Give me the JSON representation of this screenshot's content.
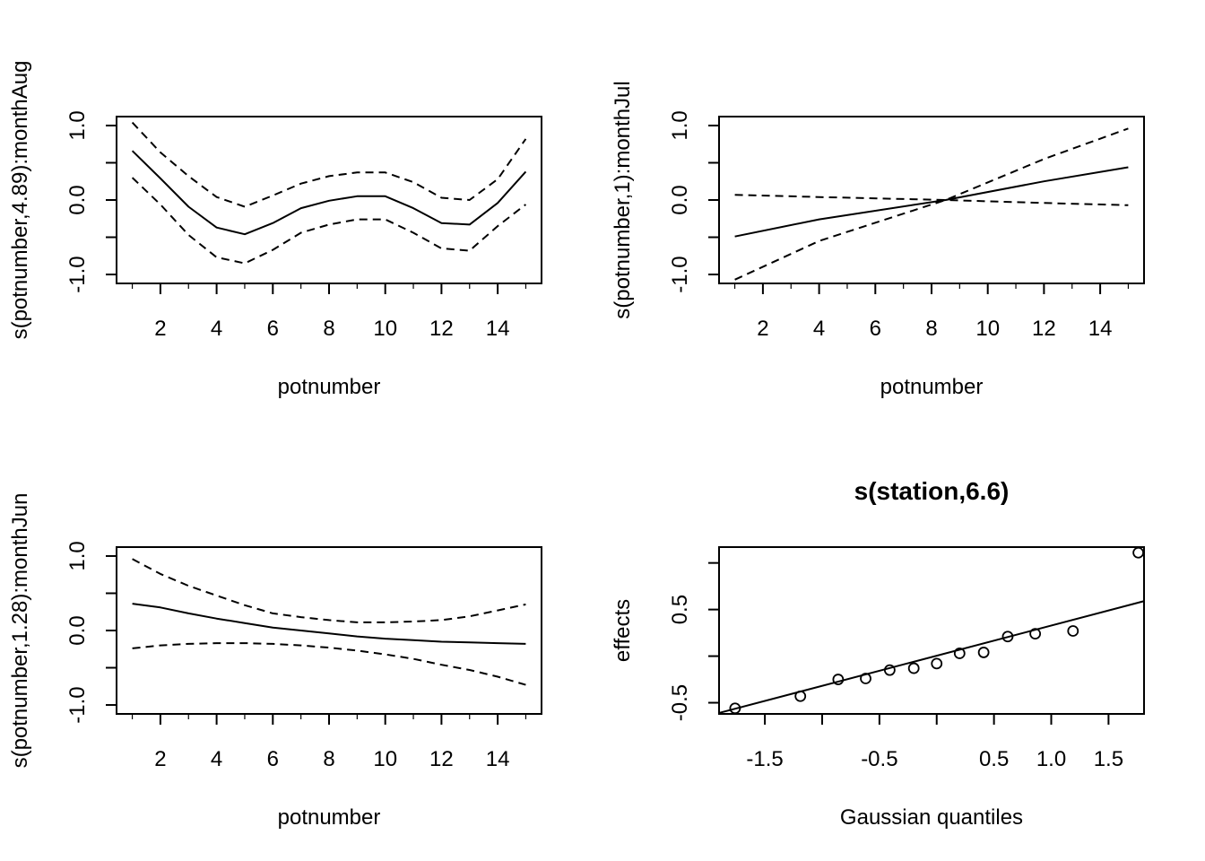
{
  "chart_data": [
    {
      "type": "line",
      "title": "",
      "xlabel": "potnumber",
      "ylabel": "s(potnumber,4.89):monthAug",
      "xlim": [
        0.44,
        15.56
      ],
      "ylim": [
        -1.12,
        1.12
      ],
      "xticks": [
        2,
        4,
        6,
        8,
        10,
        12,
        14
      ],
      "xticks_minor": [
        1,
        3,
        5,
        7,
        9,
        11,
        13,
        15
      ],
      "yticks": [
        -1.0,
        -0.5,
        0.0,
        0.5,
        1.0
      ],
      "yticklabels": [
        "-1.0",
        "",
        "0.0",
        "",
        "1.0"
      ],
      "x": [
        1,
        2,
        3,
        4,
        5,
        6,
        7,
        8,
        9,
        10,
        11,
        12,
        13,
        14,
        15
      ],
      "series": [
        {
          "style": "solid",
          "values": [
            0.66,
            0.29,
            -0.09,
            -0.37,
            -0.46,
            -0.31,
            -0.11,
            -0.01,
            0.05,
            0.05,
            -0.11,
            -0.31,
            -0.33,
            -0.04,
            0.38
          ]
        },
        {
          "style": "dashed",
          "values": [
            1.04,
            0.64,
            0.32,
            0.04,
            -0.09,
            0.06,
            0.22,
            0.32,
            0.37,
            0.37,
            0.24,
            0.03,
            0.0,
            0.28,
            0.82
          ]
        },
        {
          "style": "dashed",
          "values": [
            0.3,
            -0.06,
            -0.47,
            -0.77,
            -0.85,
            -0.67,
            -0.44,
            -0.33,
            -0.26,
            -0.26,
            -0.44,
            -0.65,
            -0.68,
            -0.35,
            -0.06
          ]
        }
      ]
    },
    {
      "type": "line",
      "title": "",
      "xlabel": "potnumber",
      "ylabel": "s(potnumber,1):monthJul",
      "xlim": [
        0.44,
        15.56
      ],
      "ylim": [
        -1.12,
        1.12
      ],
      "xticks": [
        2,
        4,
        6,
        8,
        10,
        12,
        14
      ],
      "xticks_minor": [
        1,
        3,
        5,
        7,
        9,
        11,
        13,
        15
      ],
      "yticks": [
        -1.0,
        -0.5,
        0.0,
        0.5,
        1.0
      ],
      "yticklabels": [
        "-1.0",
        "",
        "0.0",
        "",
        "1.0"
      ],
      "x": [
        1,
        4,
        8.5,
        12,
        15
      ],
      "series": [
        {
          "style": "solid",
          "values": [
            -0.49,
            -0.26,
            0.0,
            0.25,
            0.44
          ]
        },
        {
          "style": "dashed",
          "values": [
            -1.07,
            -0.55,
            0.0,
            0.55,
            0.96
          ]
        },
        {
          "style": "dashed",
          "values": [
            0.07,
            0.04,
            0.0,
            -0.04,
            -0.07
          ]
        }
      ]
    },
    {
      "type": "line",
      "title": "",
      "xlabel": "potnumber",
      "ylabel": "s(potnumber,1.28):monthJun",
      "xlim": [
        0.44,
        15.56
      ],
      "ylim": [
        -1.12,
        1.12
      ],
      "xticks": [
        2,
        4,
        6,
        8,
        10,
        12,
        14
      ],
      "xticks_minor": [
        1,
        3,
        5,
        7,
        9,
        11,
        13,
        15
      ],
      "yticks": [
        -1.0,
        -0.5,
        0.0,
        0.5,
        1.0
      ],
      "yticklabels": [
        "-1.0",
        "",
        "0.0",
        "",
        "1.0"
      ],
      "x": [
        1,
        2,
        3,
        4,
        5,
        6,
        7,
        8,
        9,
        10,
        11,
        12,
        13,
        14,
        15
      ],
      "series": [
        {
          "style": "solid",
          "values": [
            0.36,
            0.31,
            0.23,
            0.16,
            0.1,
            0.04,
            0.0,
            -0.04,
            -0.08,
            -0.11,
            -0.13,
            -0.15,
            -0.16,
            -0.17,
            -0.18
          ]
        },
        {
          "style": "dashed",
          "values": [
            0.96,
            0.76,
            0.6,
            0.47,
            0.34,
            0.23,
            0.18,
            0.14,
            0.11,
            0.11,
            0.12,
            0.14,
            0.19,
            0.27,
            0.35
          ]
        },
        {
          "style": "dashed",
          "values": [
            -0.24,
            -0.2,
            -0.18,
            -0.17,
            -0.17,
            -0.18,
            -0.2,
            -0.23,
            -0.27,
            -0.32,
            -0.38,
            -0.46,
            -0.53,
            -0.62,
            -0.73
          ]
        }
      ]
    },
    {
      "type": "scatter",
      "title": "s(station,6.6)",
      "xlabel": "Gaussian quantiles",
      "ylabel": "effects",
      "xlim": [
        -1.9,
        1.81
      ],
      "ylim": [
        -0.62,
        1.17
      ],
      "xticks": [
        -1.5,
        -1.0,
        -0.5,
        0.0,
        0.5,
        1.0,
        1.5
      ],
      "xticklabels": [
        "-1.5",
        "",
        "-0.5",
        "",
        "0.5",
        "1.0",
        "1.5"
      ],
      "yticks": [
        -0.5,
        0.0,
        0.5,
        1.0
      ],
      "yticklabels": [
        "-0.5",
        "",
        "0.5",
        ""
      ],
      "points": {
        "x": [
          -1.76,
          -1.19,
          -0.86,
          -0.62,
          -0.41,
          -0.2,
          0.0,
          0.2,
          0.41,
          0.62,
          0.86,
          1.19,
          1.76
        ],
        "y": [
          -0.56,
          -0.43,
          -0.25,
          -0.24,
          -0.15,
          -0.13,
          -0.08,
          0.03,
          0.04,
          0.21,
          0.24,
          0.27,
          1.11
        ]
      },
      "reference_line": {
        "x": [
          -1.9,
          1.81
        ],
        "y": [
          -0.61,
          0.59
        ]
      }
    }
  ]
}
